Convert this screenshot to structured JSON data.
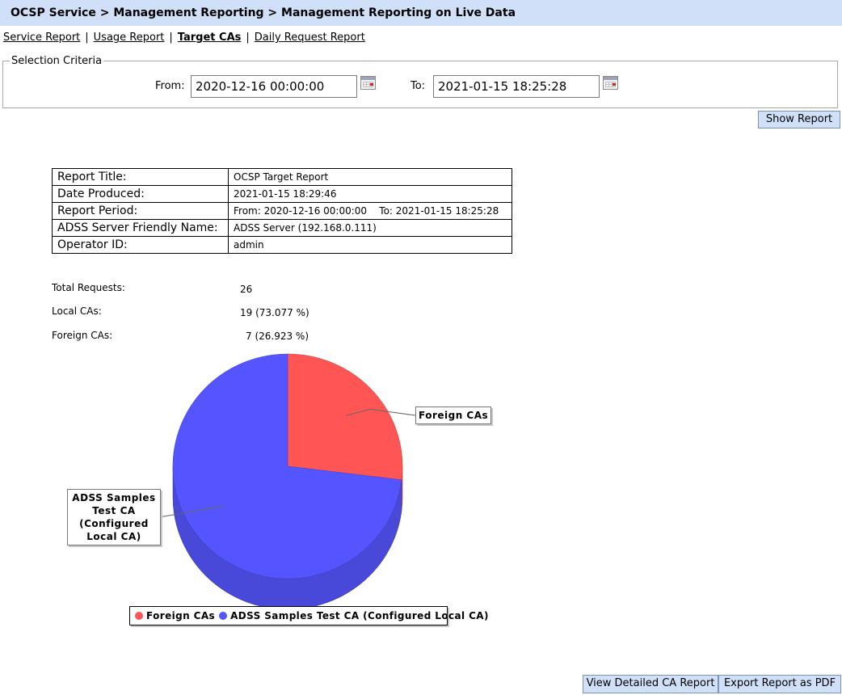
{
  "header": {
    "breadcrumb": "OCSP Service > Management Reporting > Management Reporting on Live Data"
  },
  "nav": {
    "links": [
      {
        "label": "Service Report",
        "active": false
      },
      {
        "label": "Usage Report",
        "active": false
      },
      {
        "label": "Target CAs",
        "active": true
      },
      {
        "label": "Daily Request Report",
        "active": false
      }
    ],
    "separator": "|"
  },
  "criteria": {
    "legend": "Selection Criteria",
    "from_label": "From:",
    "from_value": "2020-12-16 00:00:00",
    "to_label": "To:",
    "to_value": "2021-01-15 18:25:28"
  },
  "buttons": {
    "show_report": "Show Report",
    "view_detailed": "View Detailed CA Report",
    "export_pdf": "Export Report as PDF"
  },
  "report_info": [
    {
      "key": "Report Title:",
      "value": "OCSP Target Report"
    },
    {
      "key": "Date Produced:",
      "value": "2021-01-15 18:29:46"
    },
    {
      "key": "Report Period:",
      "value": "From: 2020-12-16 00:00:00    To: 2021-01-15 18:25:28"
    },
    {
      "key": "ADSS Server Friendly Name:",
      "value": "ADSS Server (192.168.0.111)"
    },
    {
      "key": "Operator ID:",
      "value": "admin"
    }
  ],
  "summary": {
    "total_label": "Total Requests:",
    "total_value": "26",
    "local_label": "Local CAs:",
    "local_value": "19 (73.077 %)",
    "foreign_label": "Foreign CAs:",
    "foreign_value": "7 (26.923 %)"
  },
  "chart_data": {
    "type": "pie",
    "slices": [
      {
        "label": "Foreign CAs",
        "value": 7,
        "color": "#ff5555"
      },
      {
        "label": "ADSS Samples Test CA (Configured Local CA)",
        "value": 19,
        "color": "#5555ff"
      }
    ],
    "callout_local": "ADSS Samples Test CA (Configured Local CA)",
    "legend": [
      "Foreign CAs",
      "ADSS Samples Test CA (Configured Local CA)"
    ],
    "legend_position": "bottom"
  }
}
